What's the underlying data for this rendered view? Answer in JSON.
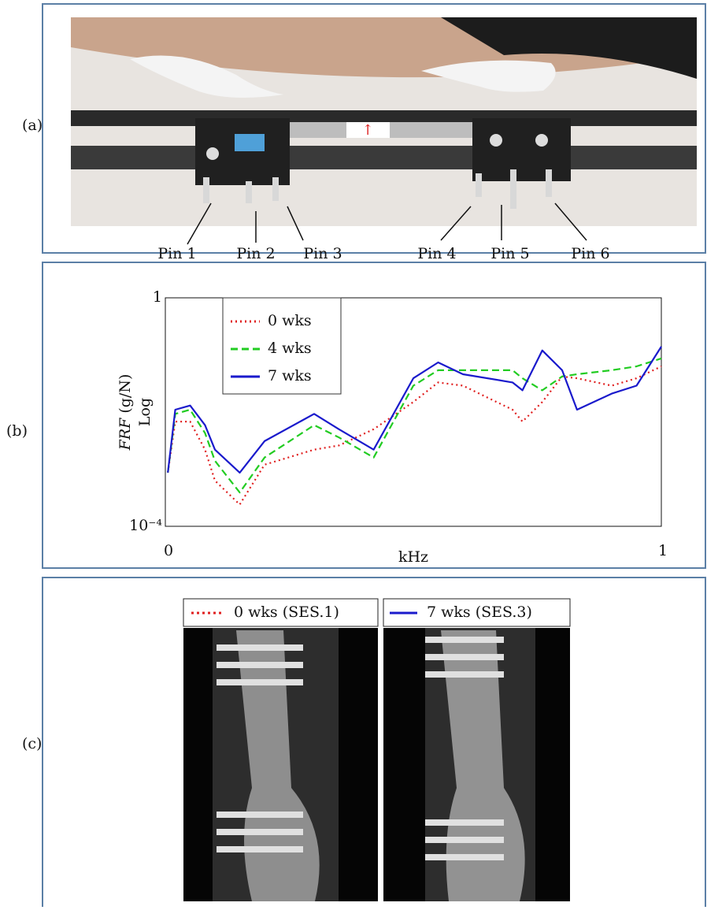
{
  "panel_labels": {
    "a": "(a)",
    "b": "(b)",
    "c": "(c)"
  },
  "photo": {
    "pins": [
      "Pin 1",
      "Pin 2",
      "Pin 3",
      "Pin 4",
      "Pin 5",
      "Pin 6"
    ]
  },
  "chart_data": {
    "type": "line",
    "y_label": {
      "symbol": "FRF",
      "unit": "(g/N)"
    },
    "y_scale_label": "Log",
    "x_label": "kHz",
    "log_y": true,
    "xlim": [
      0,
      1
    ],
    "xticks": [
      0,
      1
    ],
    "ylim": [
      0.0001,
      1
    ],
    "yticks": [
      1,
      {
        "value": 0.0001,
        "label": "10⁻⁴"
      }
    ],
    "x": [
      0.005,
      0.02,
      0.05,
      0.08,
      0.1,
      0.15,
      0.2,
      0.3,
      0.35,
      0.42,
      0.5,
      0.55,
      0.6,
      0.7,
      0.72,
      0.76,
      0.8,
      0.83,
      0.9,
      0.95,
      1.0
    ],
    "series": [
      {
        "name": "0 wks",
        "color": "#e02020",
        "style": "dotted",
        "values": [
          0.00087,
          0.0068,
          0.0068,
          0.0022,
          0.00063,
          0.00024,
          0.0012,
          0.0022,
          0.0026,
          0.005,
          0.015,
          0.033,
          0.029,
          0.011,
          0.0068,
          0.015,
          0.042,
          0.039,
          0.029,
          0.039,
          0.063
        ]
      },
      {
        "name": "4 wks",
        "color": "#22cc22",
        "style": "dashed",
        "values": [
          0.00087,
          0.0093,
          0.011,
          0.0043,
          0.0014,
          0.00039,
          0.0016,
          0.0059,
          0.0036,
          0.0016,
          0.029,
          0.054,
          0.054,
          0.054,
          0.039,
          0.024,
          0.042,
          0.046,
          0.054,
          0.063,
          0.087
        ]
      },
      {
        "name": "7 wks",
        "color": "#1a1acc",
        "style": "solid",
        "values": [
          0.00087,
          0.011,
          0.013,
          0.0059,
          0.0022,
          0.00087,
          0.0031,
          0.0093,
          0.005,
          0.0022,
          0.039,
          0.074,
          0.046,
          0.033,
          0.024,
          0.12,
          0.054,
          0.011,
          0.021,
          0.029,
          0.14
        ]
      }
    ]
  },
  "xrays": {
    "legends": [
      "0 wks (SES.1)",
      "7 wks (SES.3)"
    ]
  }
}
